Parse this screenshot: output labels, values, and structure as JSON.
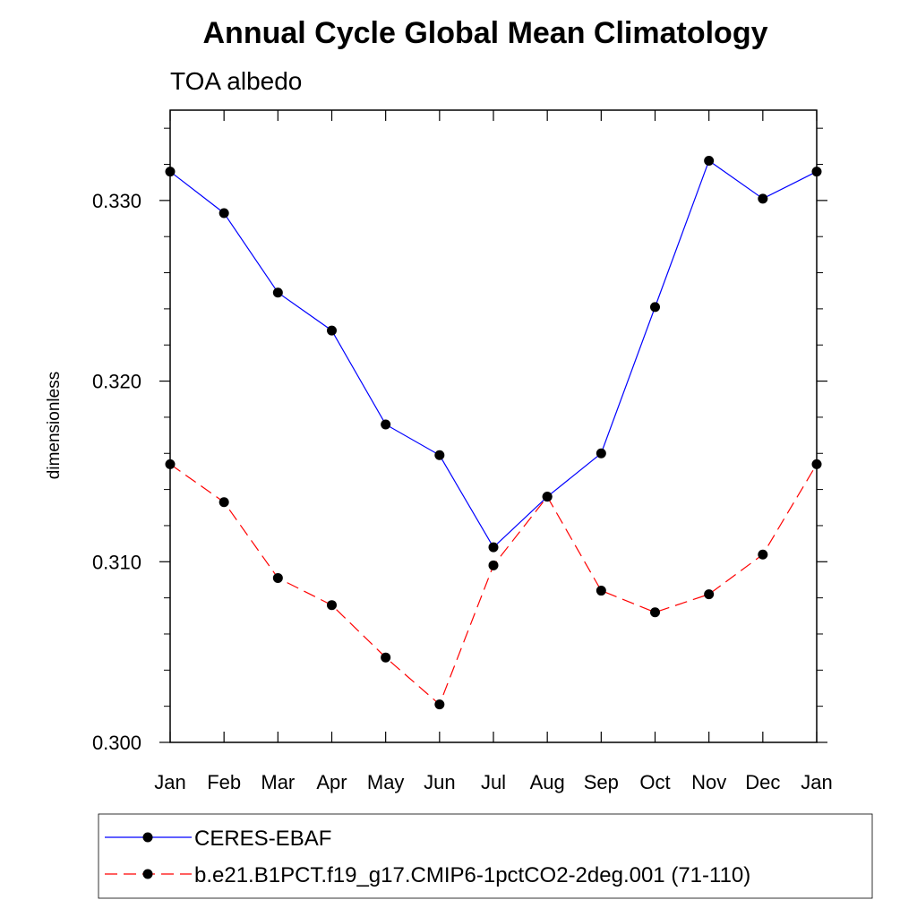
{
  "chart_data": {
    "type": "line",
    "title": "Annual Cycle Global Mean Climatology",
    "subtitle": "TOA albedo",
    "xlabel": "",
    "ylabel": "dimensionless",
    "categories": [
      "Jan",
      "Feb",
      "Mar",
      "Apr",
      "May",
      "Jun",
      "Jul",
      "Aug",
      "Sep",
      "Oct",
      "Nov",
      "Dec",
      "Jan"
    ],
    "ylim": [
      0.3,
      0.335
    ],
    "yticks": [
      0.3,
      0.31,
      0.32,
      0.33
    ],
    "ytick_labels": [
      "0.300",
      "0.310",
      "0.320",
      "0.330"
    ],
    "grid": false,
    "legend_position": "bottom",
    "series": [
      {
        "name": "CERES-EBAF",
        "color": "#0000ff",
        "dash": "solid",
        "marker": "circle",
        "values": [
          0.3316,
          0.3293,
          0.3249,
          0.3228,
          0.3176,
          0.3159,
          0.3108,
          0.3136,
          0.316,
          0.3241,
          0.3322,
          0.3301,
          0.3316
        ]
      },
      {
        "name": "b.e21.B1PCT.f19_g17.CMIP6-1pctCO2-2deg.001 (71-110)",
        "color": "#ff0000",
        "dash": "dashed",
        "marker": "circle",
        "values": [
          0.3154,
          0.3133,
          0.3091,
          0.3076,
          0.3047,
          0.3021,
          0.3098,
          0.3136,
          0.3084,
          0.3072,
          0.3082,
          0.3104,
          0.3154
        ]
      }
    ]
  }
}
